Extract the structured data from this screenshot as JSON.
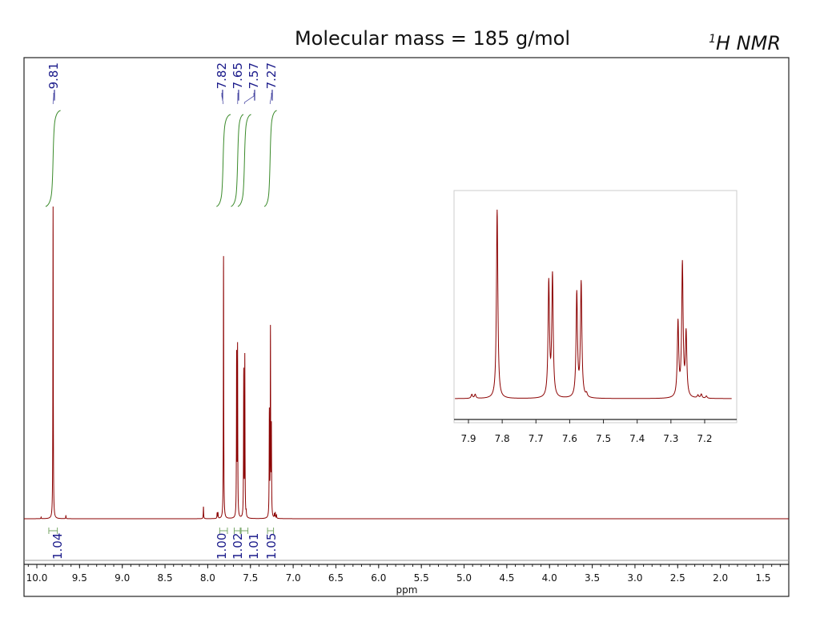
{
  "title": "Molecular mass = 185 g/mol",
  "nucleus_label": {
    "sup": "1",
    "text": "H NMR"
  },
  "chart_data": {
    "type": "line",
    "xlabel": "ppm",
    "ylabel": "",
    "xlim": [
      10.15,
      1.2
    ],
    "x_reversed": true,
    "grid": false,
    "x_ticks": [
      "10.0",
      "9.5",
      "9.0",
      "8.5",
      "8.0",
      "7.5",
      "7.0",
      "6.5",
      "6.0",
      "5.5",
      "5.0",
      "4.5",
      "4.0",
      "3.5",
      "3.0",
      "2.5",
      "2.0",
      "1.5"
    ],
    "peak_labels": [
      "9.81",
      "7.82",
      "7.65",
      "7.57",
      "7.27"
    ],
    "integrals": [
      {
        "center": 9.81,
        "range": [
          9.86,
          9.76
        ],
        "value": "1.04"
      },
      {
        "center": 7.82,
        "range": [
          7.86,
          7.77
        ],
        "value": "1.00"
      },
      {
        "center": 7.65,
        "range": [
          7.69,
          7.62
        ],
        "value": "1.02"
      },
      {
        "center": 7.57,
        "range": [
          7.61,
          7.53
        ],
        "value": "1.01"
      },
      {
        "center": 7.27,
        "range": [
          7.3,
          7.23
        ],
        "value": "1.05"
      }
    ],
    "peaks": [
      {
        "ppm": 9.81,
        "intensity": 390
      },
      {
        "ppm": 9.66,
        "intensity": 4
      },
      {
        "ppm": 9.95,
        "intensity": 2
      },
      {
        "ppm": 8.05,
        "intensity": 15
      },
      {
        "ppm": 7.89,
        "intensity": 7
      },
      {
        "ppm": 7.88,
        "intensity": 7
      },
      {
        "ppm": 7.815,
        "intensity": 330
      },
      {
        "ppm": 7.662,
        "intensity": 200
      },
      {
        "ppm": 7.651,
        "intensity": 212
      },
      {
        "ppm": 7.579,
        "intensity": 182
      },
      {
        "ppm": 7.566,
        "intensity": 200
      },
      {
        "ppm": 7.55,
        "intensity": 6
      },
      {
        "ppm": 7.279,
        "intensity": 130
      },
      {
        "ppm": 7.266,
        "intensity": 232
      },
      {
        "ppm": 7.255,
        "intensity": 110
      },
      {
        "ppm": 7.22,
        "intensity": 5
      },
      {
        "ppm": 7.21,
        "intensity": 7
      },
      {
        "ppm": 7.195,
        "intensity": 4
      }
    ],
    "inset": {
      "xlim": [
        7.94,
        7.12
      ],
      "x_ticks": [
        "7.9",
        "7.8",
        "7.7",
        "7.6",
        "7.5",
        "7.4",
        "7.3",
        "7.2"
      ]
    }
  },
  "colors": {
    "spectrum": "#8b0000",
    "integral": "#3a8a2a",
    "labels": "#1a1a8a",
    "frame": "#222222"
  }
}
